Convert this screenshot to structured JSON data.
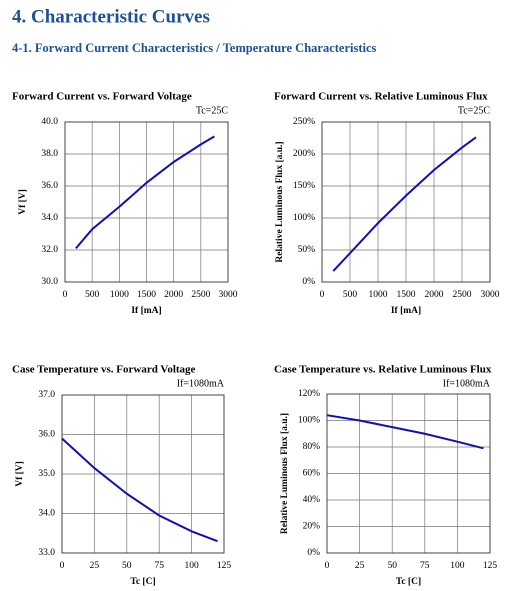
{
  "header": {
    "title": "4. Characteristic Curves",
    "subtitle": "4-1. Forward Current Characteristics / Temperature Characteristics"
  },
  "chart_data": [
    {
      "type": "line",
      "title": "Forward Current vs. Forward Voltage",
      "annotation": "Tc=25C",
      "x_label": "If [mA]",
      "y_label": "Vf [V]",
      "x": [
        200,
        500,
        1000,
        1500,
        2000,
        2500,
        2750
      ],
      "values": [
        32.1,
        33.3,
        34.7,
        36.2,
        37.5,
        38.6,
        39.1
      ],
      "color": "#1010b8",
      "xlim": [
        0,
        3000
      ],
      "xticks": [
        0,
        500,
        1000,
        1500,
        2000,
        2500,
        3000
      ],
      "ylim": [
        30,
        40
      ],
      "yticks": [
        {
          "value": 30,
          "label": "30.0"
        },
        {
          "value": 32,
          "label": "32.0"
        },
        {
          "value": 34,
          "label": "34.0"
        },
        {
          "value": 36,
          "label": "36.0"
        },
        {
          "value": 38,
          "label": "38.0"
        },
        {
          "value": 40,
          "label": "40.0"
        }
      ],
      "grid": true
    },
    {
      "type": "line",
      "title": "Forward Current vs. Relative Luminous Flux",
      "annotation": "Tc=25C",
      "x_label": "If [mA]",
      "y_label": "Relative Luminous Flux [a.u.]",
      "x": [
        200,
        500,
        1000,
        1500,
        2000,
        2500,
        2750
      ],
      "values": [
        17,
        45,
        92,
        135,
        175,
        210,
        226
      ],
      "color": "#1010b8",
      "xlim": [
        0,
        3000
      ],
      "xticks": [
        0,
        500,
        1000,
        1500,
        2000,
        2500,
        3000
      ],
      "ylim": [
        0,
        250
      ],
      "yticks": [
        {
          "value": 0,
          "label": "0%"
        },
        {
          "value": 50,
          "label": "50%"
        },
        {
          "value": 100,
          "label": "100%"
        },
        {
          "value": 150,
          "label": "150%"
        },
        {
          "value": 200,
          "label": "200%"
        },
        {
          "value": 250,
          "label": "250%"
        }
      ],
      "grid": true
    },
    {
      "type": "line",
      "title": "Case Temperature vs. Forward Voltage",
      "annotation": "If=1080mA",
      "x_label": "Tc [C]",
      "y_label": "Vf [V]",
      "x": [
        0,
        25,
        50,
        75,
        100,
        120
      ],
      "values": [
        35.9,
        35.15,
        34.5,
        33.95,
        33.55,
        33.3
      ],
      "color": "#1010b8",
      "xlim": [
        0,
        125
      ],
      "xticks": [
        0,
        25,
        50,
        75,
        100,
        125
      ],
      "ylim": [
        33,
        37
      ],
      "yticks": [
        {
          "value": 33,
          "label": "33.0"
        },
        {
          "value": 34,
          "label": "34.0"
        },
        {
          "value": 35,
          "label": "35.0"
        },
        {
          "value": 36,
          "label": "36.0"
        },
        {
          "value": 37,
          "label": "37.0"
        }
      ],
      "grid": true
    },
    {
      "type": "line",
      "title": "Case Temperature vs. Relative Luminous Flux",
      "annotation": "If=1080mA",
      "x_label": "Tc [C]",
      "y_label": "Relative Luminous Flux [a.u.]",
      "x": [
        0,
        25,
        50,
        75,
        100,
        120
      ],
      "values": [
        104,
        100,
        95,
        90,
        84,
        79
      ],
      "color": "#1010b8",
      "xlim": [
        0,
        125
      ],
      "xticks": [
        0,
        25,
        50,
        75,
        100,
        125
      ],
      "ylim": [
        0,
        120
      ],
      "yticks": [
        {
          "value": 0,
          "label": "0%"
        },
        {
          "value": 20,
          "label": "20%"
        },
        {
          "value": 40,
          "label": "40%"
        },
        {
          "value": 60,
          "label": "60%"
        },
        {
          "value": 80,
          "label": "80%"
        },
        {
          "value": 100,
          "label": "100%"
        },
        {
          "value": 120,
          "label": "120%"
        }
      ],
      "grid": true
    }
  ]
}
